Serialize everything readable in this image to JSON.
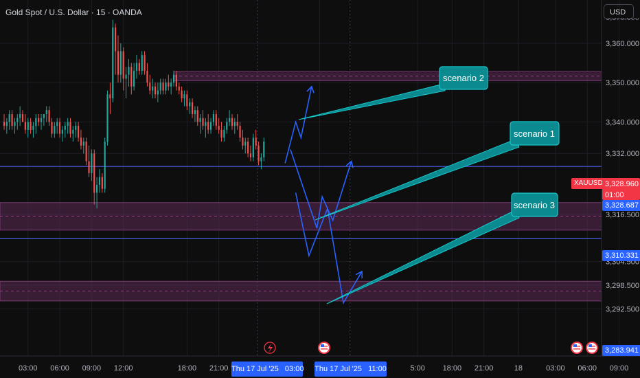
{
  "header": {
    "symbol_title": "Gold Spot / U.S. Dollar · 15 · OANDA"
  },
  "currency_button": "USD",
  "colors": {
    "bull": "#26a69a",
    "bear": "#ef5350",
    "zone": "#5b2a55",
    "line_blue": "#4b5ee8",
    "arrow": "#2962ff",
    "callout_fill": "#0b8a8f",
    "callout_stroke": "#17c7cc",
    "price_red": "#f23645",
    "price_blue": "#2962ff"
  },
  "price_axis": {
    "ticks": [
      "3,360.000",
      "3,350.000",
      "3,340.000",
      "3,332.000",
      "3,316.500",
      "3,304.500",
      "3,298.500",
      "3,292.500"
    ],
    "tick_values": [
      3360,
      3350,
      3340,
      3332,
      3316.5,
      3304.5,
      3298.5,
      3292.5
    ],
    "top_partial": "3,370.000",
    "current_symbol": "XAUUSD",
    "current_price": "3,328.960",
    "countdown": "01:00",
    "label_blue_1": "3,328.687",
    "label_blue_2": "3,310.331",
    "label_bottom": "3,283.941"
  },
  "time_axis": {
    "ticks": [
      {
        "label": "03:00",
        "bar": 9
      },
      {
        "label": "06:00",
        "bar": 21
      },
      {
        "label": "09:00",
        "bar": 33
      },
      {
        "label": "12:00",
        "bar": 45
      },
      {
        "label": "18:00",
        "bar": 69
      },
      {
        "label": "21:00",
        "bar": 81
      },
      {
        "label": "0",
        "bar": 119
      },
      {
        "label": "5:00",
        "bar": 156
      },
      {
        "label": "18:00",
        "bar": 169
      },
      {
        "label": "21:00",
        "bar": 181
      },
      {
        "label": "18",
        "bar": 194
      },
      {
        "label": "03:00",
        "bar": 208
      },
      {
        "label": "06:00",
        "bar": 220
      },
      {
        "label": "09:00",
        "bar": 232
      }
    ],
    "highlight_1": "Thu 17 Jul '25   03:00",
    "highlight_2": "Thu 17 Jul '25   11:00"
  },
  "annotations": {
    "scenario_1": "scenario 1",
    "scenario_2": "scenario 2",
    "scenario_3": "scenario 3"
  },
  "chart_data": {
    "type": "candlestick",
    "ylim": [
      3280.5,
      3371
    ],
    "horizontal_lines": [
      3328.687,
      3310.331
    ],
    "zones": [
      {
        "from": 3350.5,
        "to": 3352.8
      },
      {
        "from": 3312.5,
        "to": 3319.5
      },
      {
        "from": 3294.5,
        "to": 3299.5
      }
    ],
    "scenarios": [
      {
        "name": "scenario 2",
        "path": [
          [
            106,
            3329.5
          ],
          [
            110,
            3340
          ],
          [
            112,
            3336
          ],
          [
            116,
            3349
          ]
        ]
      },
      {
        "name": "scenario 1",
        "path": [
          [
            108,
            3333
          ],
          [
            118,
            3313
          ],
          [
            120,
            3321
          ],
          [
            124,
            3315
          ],
          [
            131,
            3330
          ]
        ]
      },
      {
        "name": "scenario 3",
        "path": [
          [
            110,
            3322
          ],
          [
            115,
            3306
          ],
          [
            122,
            3318
          ],
          [
            128,
            3294
          ],
          [
            135,
            3302
          ]
        ]
      }
    ],
    "candles": [
      [
        3340,
        3342,
        3338,
        3339
      ],
      [
        3339,
        3341,
        3337,
        3340
      ],
      [
        3340,
        3343,
        3338,
        3342
      ],
      [
        3342,
        3343,
        3338,
        3339
      ],
      [
        3339,
        3341,
        3337,
        3340
      ],
      [
        3340,
        3342,
        3338,
        3341
      ],
      [
        3341,
        3344,
        3339,
        3342
      ],
      [
        3342,
        3343,
        3340,
        3340
      ],
      [
        3340,
        3342,
        3337,
        3338
      ],
      [
        3338,
        3341,
        3336,
        3340
      ],
      [
        3340,
        3341,
        3337,
        3338
      ],
      [
        3338,
        3340,
        3336,
        3339
      ],
      [
        3339,
        3342,
        3337,
        3341
      ],
      [
        3341,
        3342,
        3339,
        3340
      ],
      [
        3340,
        3342,
        3338,
        3341
      ],
      [
        3341,
        3342,
        3339,
        3342
      ],
      [
        3342,
        3344,
        3340,
        3343
      ],
      [
        3343,
        3344,
        3339,
        3340
      ],
      [
        3340,
        3341,
        3336,
        3337
      ],
      [
        3337,
        3340,
        3336,
        3339
      ],
      [
        3339,
        3341,
        3337,
        3340
      ],
      [
        3340,
        3341,
        3336,
        3337
      ],
      [
        3337,
        3339,
        3335,
        3338
      ],
      [
        3338,
        3340,
        3336,
        3339
      ],
      [
        3339,
        3341,
        3337,
        3340
      ],
      [
        3340,
        3341,
        3336,
        3337
      ],
      [
        3337,
        3339,
        3335,
        3338
      ],
      [
        3338,
        3340,
        3336,
        3339
      ],
      [
        3339,
        3340,
        3335,
        3336
      ],
      [
        3336,
        3338,
        3333,
        3334
      ],
      [
        3334,
        3336,
        3332,
        3335
      ],
      [
        3335,
        3336,
        3329,
        3330
      ],
      [
        3330,
        3334,
        3326,
        3327
      ],
      [
        3327,
        3333,
        3325,
        3332
      ],
      [
        3332,
        3333,
        3319,
        3322
      ],
      [
        3322,
        3326,
        3318,
        3324
      ],
      [
        3324,
        3328,
        3322,
        3326
      ],
      [
        3326,
        3327,
        3322,
        3323
      ],
      [
        3323,
        3336,
        3322,
        3335
      ],
      [
        3335,
        3348,
        3334,
        3347
      ],
      [
        3347,
        3350,
        3342,
        3346
      ],
      [
        3346,
        3366,
        3345,
        3364
      ],
      [
        3364,
        3365,
        3352,
        3358
      ],
      [
        3358,
        3362,
        3350,
        3352
      ],
      [
        3352,
        3360,
        3350,
        3358
      ],
      [
        3358,
        3359,
        3348,
        3351
      ],
      [
        3351,
        3354,
        3346,
        3352
      ],
      [
        3352,
        3356,
        3349,
        3354
      ],
      [
        3354,
        3355,
        3347,
        3349
      ],
      [
        3349,
        3355,
        3348,
        3353
      ],
      [
        3353,
        3357,
        3351,
        3355
      ],
      [
        3355,
        3356,
        3352,
        3353
      ],
      [
        3353,
        3358,
        3352,
        3357
      ],
      [
        3357,
        3358,
        3352,
        3353
      ],
      [
        3353,
        3355,
        3349,
        3350
      ],
      [
        3350,
        3352,
        3347,
        3348
      ],
      [
        3348,
        3351,
        3346,
        3349
      ],
      [
        3349,
        3350,
        3346,
        3347
      ],
      [
        3347,
        3350,
        3345,
        3348
      ],
      [
        3348,
        3351,
        3347,
        3350
      ],
      [
        3350,
        3351,
        3347,
        3348
      ],
      [
        3348,
        3351,
        3347,
        3350
      ],
      [
        3350,
        3352,
        3348,
        3349
      ],
      [
        3349,
        3351,
        3347,
        3350
      ],
      [
        3350,
        3353,
        3349,
        3352
      ],
      [
        3352,
        3353,
        3348,
        3349
      ],
      [
        3349,
        3350,
        3347,
        3348
      ],
      [
        3348,
        3349,
        3345,
        3346
      ],
      [
        3346,
        3348,
        3344,
        3347
      ],
      [
        3347,
        3348,
        3343,
        3344
      ],
      [
        3344,
        3346,
        3342,
        3345
      ],
      [
        3345,
        3346,
        3341,
        3342
      ],
      [
        3342,
        3344,
        3340,
        3343
      ],
      [
        3343,
        3344,
        3339,
        3340
      ],
      [
        3340,
        3342,
        3337,
        3341
      ],
      [
        3341,
        3343,
        3338,
        3339
      ],
      [
        3339,
        3341,
        3336,
        3340
      ],
      [
        3340,
        3342,
        3337,
        3338
      ],
      [
        3338,
        3341,
        3337,
        3340
      ],
      [
        3340,
        3343,
        3339,
        3342
      ],
      [
        3342,
        3343,
        3338,
        3339
      ],
      [
        3339,
        3341,
        3337,
        3338
      ],
      [
        3338,
        3340,
        3335,
        3336
      ],
      [
        3336,
        3339,
        3335,
        3338
      ],
      [
        3338,
        3341,
        3337,
        3340
      ],
      [
        3340,
        3343,
        3339,
        3341
      ],
      [
        3341,
        3342,
        3338,
        3339
      ],
      [
        3339,
        3341,
        3337,
        3340
      ],
      [
        3340,
        3342,
        3338,
        3339
      ],
      [
        3339,
        3340,
        3335,
        3336
      ],
      [
        3336,
        3338,
        3333,
        3334
      ],
      [
        3334,
        3336,
        3332,
        3335
      ],
      [
        3335,
        3336,
        3331,
        3332
      ],
      [
        3332,
        3334,
        3330,
        3331
      ],
      [
        3331,
        3337,
        3330,
        3336
      ],
      [
        3336,
        3338,
        3333,
        3334
      ],
      [
        3334,
        3335,
        3329,
        3330
      ],
      [
        3330,
        3332,
        3328,
        3331
      ],
      [
        3331,
        3336,
        3330,
        3335
      ]
    ]
  }
}
